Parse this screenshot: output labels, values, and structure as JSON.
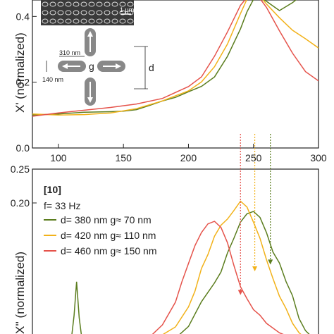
{
  "colors": {
    "green": "#5b7d1e",
    "orange": "#f2b21a",
    "red": "#e5534b",
    "axis": "#222222"
  },
  "inset": {
    "scale_label": "1 μm",
    "dim_length": "310 nm",
    "dim_width": "140 nm",
    "label_g": "g",
    "label_d": "d"
  },
  "chart_data": [
    {
      "type": "line",
      "ylabel": "X' (normalized)",
      "xlim": [
        80,
        300
      ],
      "ylim": [
        0,
        0.45
      ],
      "xticks": [
        100,
        150,
        200,
        250,
        300
      ],
      "yticks": [
        0.0,
        0.2,
        0.4
      ],
      "xtick_labels": [
        "100",
        "150",
        "200",
        "250",
        "300"
      ],
      "ytick_labels": [
        "0.0",
        "0.2",
        "0.4"
      ],
      "series": [
        {
          "color": "green",
          "x": [
            80,
            100,
            120,
            140,
            150,
            160,
            170,
            180,
            190,
            200,
            210,
            220,
            230,
            240,
            245,
            250,
            255,
            260,
            270,
            280,
            290,
            300
          ],
          "y": [
            0.1,
            0.1,
            0.105,
            0.11,
            0.115,
            0.12,
            0.13,
            0.14,
            0.15,
            0.17,
            0.19,
            0.22,
            0.28,
            0.36,
            0.41,
            0.45,
            0.46,
            0.45,
            0.42,
            0.44,
            0.47,
            0.48
          ]
        },
        {
          "color": "orange",
          "x": [
            80,
            100,
            120,
            140,
            160,
            180,
            200,
            210,
            220,
            230,
            240,
            245,
            250,
            255,
            260,
            270,
            280,
            290,
            300
          ],
          "y": [
            0.1,
            0.1,
            0.105,
            0.11,
            0.12,
            0.14,
            0.17,
            0.2,
            0.25,
            0.32,
            0.41,
            0.45,
            0.48,
            0.46,
            0.44,
            0.4,
            0.36,
            0.33,
            0.3
          ]
        },
        {
          "color": "red",
          "x": [
            80,
            100,
            120,
            140,
            160,
            180,
            200,
            210,
            220,
            230,
            240,
            250,
            260,
            270,
            280,
            290,
            300
          ],
          "y": [
            0.1,
            0.11,
            0.115,
            0.12,
            0.13,
            0.15,
            0.19,
            0.22,
            0.28,
            0.35,
            0.43,
            0.48,
            0.43,
            0.36,
            0.29,
            0.23,
            0.2
          ]
        }
      ]
    },
    {
      "type": "line",
      "ylabel": "X'' (normalized)",
      "xlim": [
        80,
        300
      ],
      "ylim": [
        0,
        0.25
      ],
      "yticks": [
        0.2,
        0.25
      ],
      "ytick_labels": [
        "0.20",
        "0.25"
      ],
      "legend_header": "[10]",
      "legend_freq": "f= 33 Hz",
      "legend_location": "top-left",
      "series": [
        {
          "name": "d= 380 nm g≈ 70 nm",
          "color": "green",
          "x": [
            110,
            112,
            114,
            116,
            118,
            120,
            130,
            140,
            150,
            160,
            170,
            180,
            190,
            200,
            210,
            220,
            225,
            230,
            235,
            240,
            245,
            250,
            255,
            260,
            265,
            270,
            275,
            280,
            285,
            290,
            295,
            300
          ],
          "y": [
            0.0,
            0.03,
            0.08,
            0.03,
            0.0,
            0.0,
            0.0,
            0.0,
            0.0,
            0.0,
            0.0,
            0.0,
            0.0,
            0.015,
            0.05,
            0.08,
            0.1,
            0.13,
            0.15,
            0.17,
            0.18,
            0.185,
            0.18,
            0.16,
            0.13,
            0.11,
            0.08,
            0.06,
            0.03,
            0.015,
            0.005,
            0.0
          ]
        },
        {
          "name": "d= 420 nm g≈ 110 nm",
          "color": "orange",
          "x": [
            170,
            180,
            190,
            200,
            205,
            210,
            215,
            220,
            225,
            230,
            235,
            240,
            245,
            250,
            255,
            260,
            265,
            270,
            275,
            280,
            285,
            290
          ],
          "y": [
            0.0,
            0.005,
            0.02,
            0.05,
            0.07,
            0.1,
            0.12,
            0.15,
            0.17,
            0.18,
            0.19,
            0.2,
            0.19,
            0.17,
            0.15,
            0.12,
            0.09,
            0.06,
            0.04,
            0.02,
            0.01,
            0.0
          ]
        },
        {
          "name": "d= 460 nm g≈ 150 nm",
          "color": "red",
          "x": [
            160,
            170,
            180,
            190,
            195,
            200,
            205,
            210,
            215,
            220,
            225,
            230,
            235,
            240,
            245,
            250,
            255,
            260,
            270,
            280
          ],
          "y": [
            0.0,
            0.005,
            0.02,
            0.05,
            0.08,
            0.11,
            0.14,
            0.16,
            0.17,
            0.17,
            0.16,
            0.14,
            0.11,
            0.08,
            0.06,
            0.04,
            0.03,
            0.02,
            0.01,
            0.0
          ]
        }
      ],
      "markers": [
        {
          "series": "green",
          "x": 263,
          "y_top": 0.25,
          "y_bottom": 0.11
        },
        {
          "series": "orange",
          "x": 251,
          "y_top": 0.25,
          "y_bottom": 0.1
        },
        {
          "series": "red",
          "x": 240,
          "y_top": 0.25,
          "y_bottom": 0.065
        }
      ]
    }
  ]
}
